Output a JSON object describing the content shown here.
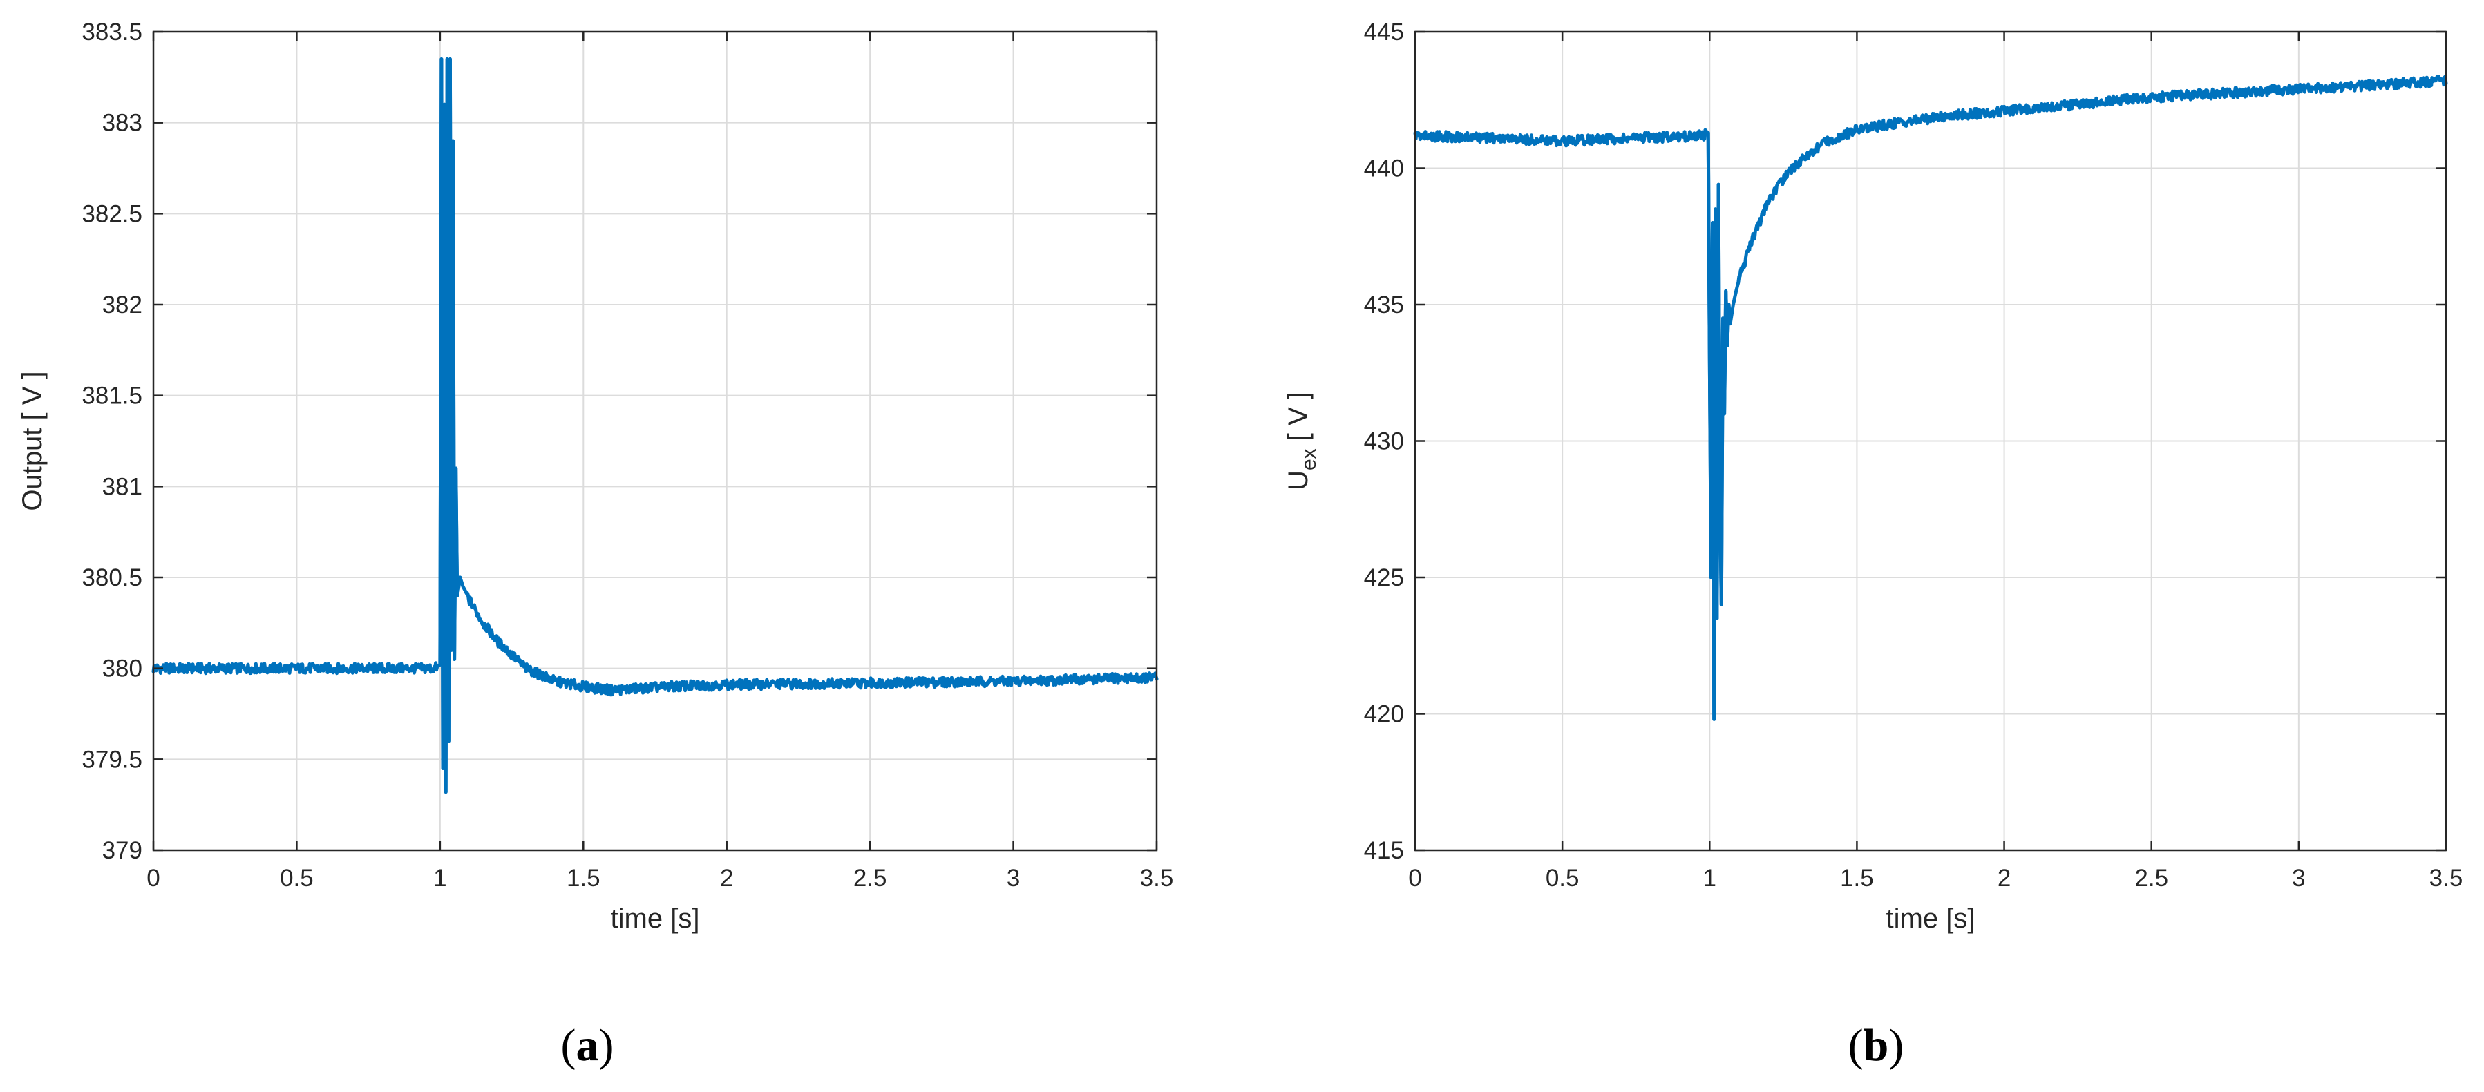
{
  "panels": [
    {
      "label": "a"
    },
    {
      "label": "b"
    }
  ],
  "chart_data": [
    {
      "type": "line",
      "title": "",
      "xlabel": "time [s]",
      "ylabel": "Output [ V ]",
      "xlim": [
        0,
        3.5
      ],
      "ylim": [
        379,
        383.5
      ],
      "xticks": [
        0,
        0.5,
        1,
        1.5,
        2,
        2.5,
        3,
        3.5
      ],
      "xtick_labels": [
        "0",
        "0.5",
        "1",
        "1.5",
        "2",
        "2.5",
        "3",
        "3.5"
      ],
      "yticks": [
        379,
        379.5,
        380,
        380.5,
        381,
        381.5,
        382,
        382.5,
        383,
        383.5
      ],
      "ytick_labels": [
        "379",
        "379.5",
        "380",
        "380.5",
        "381",
        "381.5",
        "382",
        "382.5",
        "383",
        "383.5"
      ],
      "grid": true,
      "color": "#0072BD",
      "series": [
        {
          "x": [
            0,
            0.25,
            0.5,
            0.75,
            0.98,
            1.0,
            1.005,
            1.01,
            1.015,
            1.02,
            1.025,
            1.03,
            1.035,
            1.04,
            1.045,
            1.05,
            1.055,
            1.06,
            1.07,
            1.08,
            1.09,
            1.1,
            1.15,
            1.2,
            1.3,
            1.4,
            1.5,
            1.6,
            1.7,
            1.8,
            2.0,
            2.5,
            3.0,
            3.5
          ],
          "y": [
            380.0,
            380.0,
            380.0,
            380.0,
            380.0,
            380.02,
            383.35,
            379.45,
            383.1,
            379.32,
            383.35,
            379.6,
            383.35,
            380.1,
            382.9,
            380.05,
            381.1,
            380.4,
            380.5,
            380.45,
            380.42,
            380.38,
            380.25,
            380.15,
            380.0,
            379.93,
            379.9,
            379.88,
            379.89,
            379.9,
            379.91,
            379.92,
            379.93,
            379.95
          ]
        }
      ]
    },
    {
      "type": "line",
      "title": "",
      "xlabel": "time [s]",
      "ylabel_main": "U",
      "ylabel_sub": "ex",
      "ylabel_units": " [ V ]",
      "xlim": [
        0,
        3.5
      ],
      "ylim": [
        415,
        445
      ],
      "xticks": [
        0,
        0.5,
        1,
        1.5,
        2,
        2.5,
        3,
        3.5
      ],
      "xtick_labels": [
        "0",
        "0.5",
        "1",
        "1.5",
        "2",
        "2.5",
        "3",
        "3.5"
      ],
      "yticks": [
        415,
        420,
        425,
        430,
        435,
        440,
        445
      ],
      "ytick_labels": [
        "415",
        "420",
        "425",
        "430",
        "435",
        "440",
        "445"
      ],
      "grid": true,
      "color": "#0072BD",
      "series": [
        {
          "x": [
            0,
            0.25,
            0.5,
            0.75,
            0.98,
            0.995,
            1.0,
            1.005,
            1.01,
            1.015,
            1.02,
            1.025,
            1.03,
            1.035,
            1.04,
            1.045,
            1.05,
            1.055,
            1.06,
            1.065,
            1.07,
            1.08,
            1.1,
            1.15,
            1.2,
            1.25,
            1.3,
            1.4,
            1.5,
            1.6,
            1.8,
            2.0,
            2.5,
            3.0,
            3.5
          ],
          "y": [
            441.2,
            441.1,
            441.0,
            441.1,
            441.2,
            441.3,
            433.0,
            425.0,
            438.0,
            419.8,
            438.5,
            423.5,
            439.4,
            428.0,
            424.0,
            434.5,
            431.0,
            435.5,
            433.5,
            435.0,
            434.3,
            435.0,
            436.0,
            437.5,
            438.8,
            439.6,
            440.2,
            441.0,
            441.4,
            441.6,
            441.9,
            442.1,
            442.6,
            442.9,
            443.2
          ]
        }
      ]
    }
  ]
}
